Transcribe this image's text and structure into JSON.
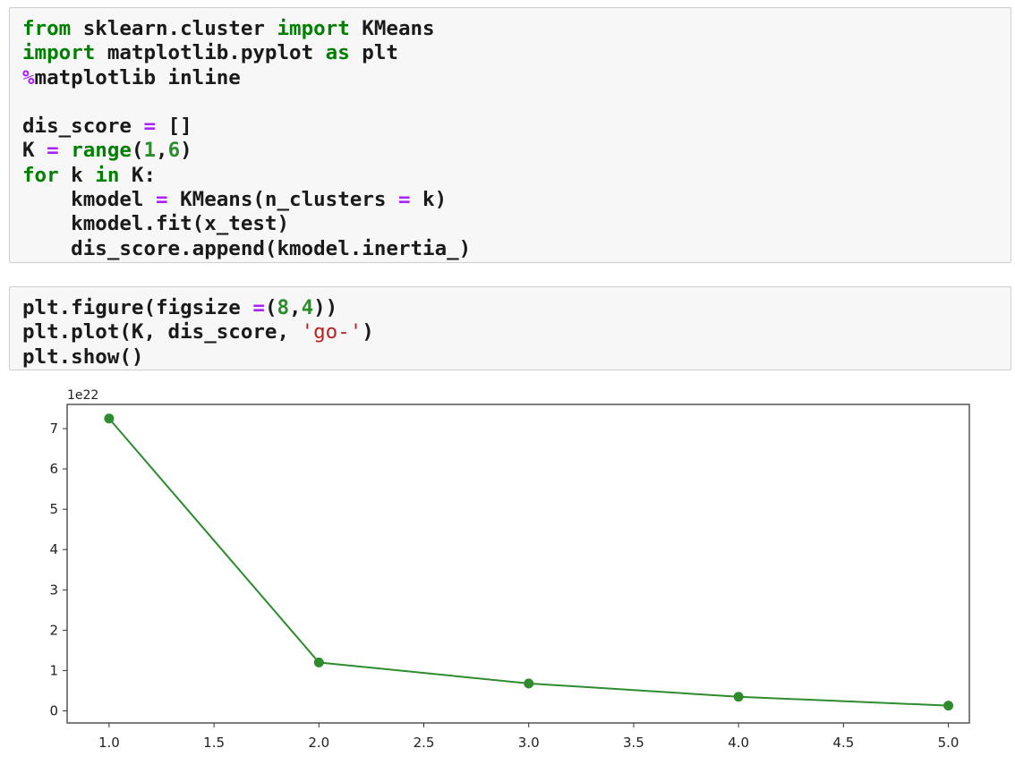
{
  "notebook": {
    "cells": [
      {
        "lines": [
          [
            {
              "t": "from",
              "c": "kw"
            },
            {
              "t": " sklearn.cluster ",
              "c": "plain"
            },
            {
              "t": "import",
              "c": "kw"
            },
            {
              "t": " KMeans",
              "c": "plain"
            }
          ],
          [
            {
              "t": "import",
              "c": "kw"
            },
            {
              "t": " matplotlib.pyplot ",
              "c": "plain"
            },
            {
              "t": "as",
              "c": "kw"
            },
            {
              "t": " plt",
              "c": "plain"
            }
          ],
          [
            {
              "t": "%",
              "c": "magic"
            },
            {
              "t": "matplotlib inline",
              "c": "plain"
            }
          ],
          [
            {
              "t": "",
              "c": "plain"
            }
          ],
          [
            {
              "t": "dis_score ",
              "c": "plain"
            },
            {
              "t": "=",
              "c": "op"
            },
            {
              "t": " []",
              "c": "plain"
            }
          ],
          [
            {
              "t": "K ",
              "c": "plain"
            },
            {
              "t": "=",
              "c": "op"
            },
            {
              "t": " ",
              "c": "plain"
            },
            {
              "t": "range",
              "c": "kw"
            },
            {
              "t": "(",
              "c": "plain"
            },
            {
              "t": "1",
              "c": "num"
            },
            {
              "t": ",",
              "c": "plain"
            },
            {
              "t": "6",
              "c": "num"
            },
            {
              "t": ")",
              "c": "plain"
            }
          ],
          [
            {
              "t": "for",
              "c": "kw"
            },
            {
              "t": " k ",
              "c": "plain"
            },
            {
              "t": "in",
              "c": "kw"
            },
            {
              "t": " K:",
              "c": "plain"
            }
          ],
          [
            {
              "t": "    kmodel ",
              "c": "plain"
            },
            {
              "t": "=",
              "c": "op"
            },
            {
              "t": " KMeans(n_clusters ",
              "c": "plain"
            },
            {
              "t": "=",
              "c": "op"
            },
            {
              "t": " k)",
              "c": "plain"
            }
          ],
          [
            {
              "t": "    kmodel.fit(x_test)",
              "c": "plain"
            }
          ],
          [
            {
              "t": "    dis_score.append(kmodel.inertia_)",
              "c": "plain"
            }
          ]
        ]
      },
      {
        "lines": [
          [
            {
              "t": "plt.figure(figsize ",
              "c": "plain"
            },
            {
              "t": "=",
              "c": "op"
            },
            {
              "t": "(",
              "c": "plain"
            },
            {
              "t": "8",
              "c": "num"
            },
            {
              "t": ",",
              "c": "plain"
            },
            {
              "t": "4",
              "c": "num"
            },
            {
              "t": "))",
              "c": "plain"
            }
          ],
          [
            {
              "t": "plt.plot(K, dis_score, ",
              "c": "plain"
            },
            {
              "t": "'go-'",
              "c": "str"
            },
            {
              "t": ")",
              "c": "plain"
            }
          ],
          [
            {
              "t": "plt.show()",
              "c": "plain"
            }
          ]
        ]
      }
    ]
  },
  "chart_data": {
    "type": "line",
    "x": [
      1,
      2,
      3,
      4,
      5
    ],
    "series": [
      {
        "values": [
          7.25,
          1.2,
          0.68,
          0.35,
          0.13
        ],
        "color": "#2e8b2e",
        "marker": "circle"
      }
    ],
    "xlim": [
      0.8,
      5.1
    ],
    "ylim": [
      -0.3,
      7.6
    ],
    "xticks": [
      "1.0",
      "1.5",
      "2.0",
      "2.5",
      "3.0",
      "3.5",
      "4.0",
      "4.5",
      "5.0"
    ],
    "xtick_values": [
      1.0,
      1.5,
      2.0,
      2.5,
      3.0,
      3.5,
      4.0,
      4.5,
      5.0
    ],
    "yticks": [
      "0",
      "1",
      "2",
      "3",
      "4",
      "5",
      "6",
      "7"
    ],
    "ytick_values": [
      0,
      1,
      2,
      3,
      4,
      5,
      6,
      7
    ],
    "y_offset_label": "1e22",
    "grid": false,
    "title": "",
    "xlabel": "",
    "ylabel": ""
  }
}
